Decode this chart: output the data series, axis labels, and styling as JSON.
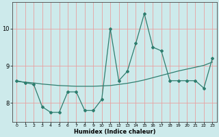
{
  "xlabel": "Humidex (Indice chaleur)",
  "x_data": [
    0,
    1,
    2,
    3,
    4,
    5,
    6,
    7,
    8,
    9,
    10,
    11,
    12,
    13,
    14,
    15,
    16,
    17,
    18,
    19,
    20,
    21,
    22,
    23
  ],
  "y_data": [
    8.6,
    8.55,
    8.5,
    7.9,
    7.75,
    7.75,
    8.3,
    8.3,
    7.8,
    7.8,
    8.1,
    10.0,
    8.6,
    8.85,
    9.6,
    10.4,
    9.5,
    9.4,
    8.6,
    8.6,
    8.6,
    8.6,
    8.4,
    9.2
  ],
  "y_trend": [
    8.58,
    8.56,
    8.54,
    8.51,
    8.49,
    8.47,
    8.46,
    8.45,
    8.45,
    8.45,
    8.46,
    8.47,
    8.5,
    8.53,
    8.57,
    8.62,
    8.68,
    8.74,
    8.8,
    8.86,
    8.91,
    8.96,
    9.01,
    9.1
  ],
  "line_color": "#2e7d6e",
  "bg_color": "#cdeaeb",
  "grid_color": "#e8a0a0",
  "ylim": [
    7.5,
    10.7
  ],
  "xlim": [
    -0.5,
    23.5
  ],
  "yticks": [
    8,
    9,
    10
  ],
  "xticks": [
    0,
    1,
    2,
    3,
    4,
    5,
    6,
    7,
    8,
    9,
    10,
    11,
    12,
    13,
    14,
    15,
    16,
    17,
    18,
    19,
    20,
    21,
    22,
    23
  ]
}
